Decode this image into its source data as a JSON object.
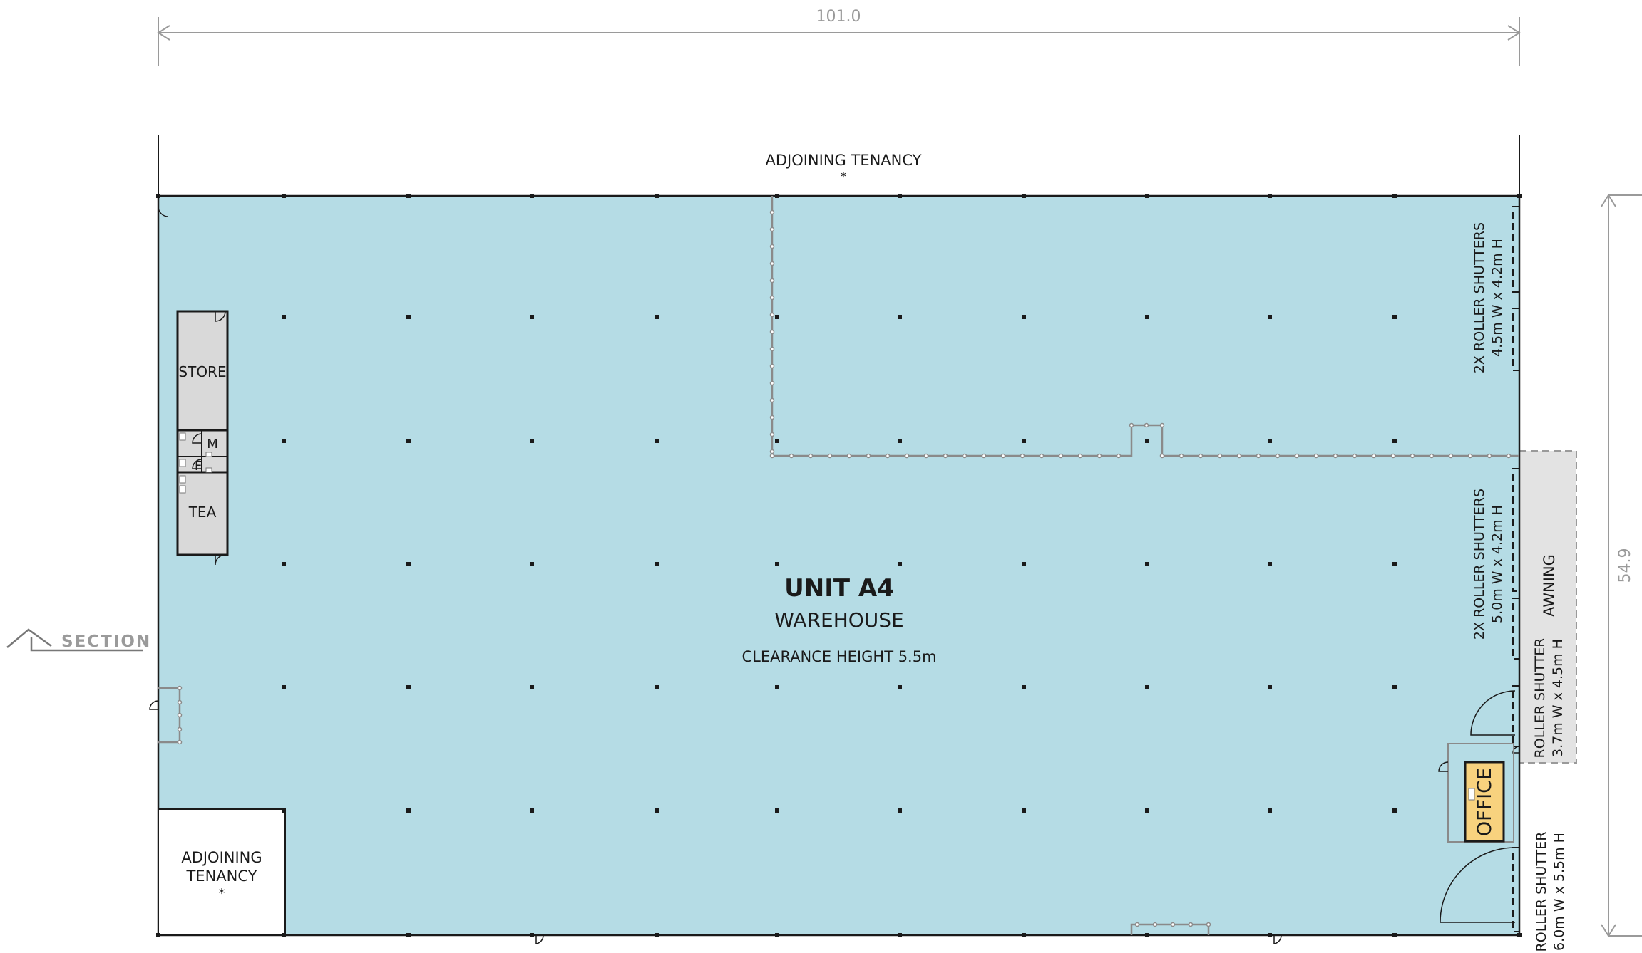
{
  "dimensions": {
    "width": "101.0",
    "depth": "54.9"
  },
  "unit": {
    "name": "UNIT A4",
    "type": "WAREHOUSE",
    "clearance": "CLEARANCE HEIGHT 5.5m"
  },
  "adjoining_top": {
    "label": "ADJOINING TENANCY",
    "mark": "*"
  },
  "adjoining_bottom": {
    "line1": "ADJOINING",
    "line2": "TENANCY",
    "mark": "*"
  },
  "rooms": {
    "store": "STORE",
    "male": "M",
    "female": "F",
    "tea": "TEA",
    "office": "OFFICE"
  },
  "section_label": "SECTION",
  "awning": "AWNING",
  "shutters": [
    {
      "line1": "2X ROLLER SHUTTERS",
      "line2": "4.5m W x 4.2m H"
    },
    {
      "line1": "2X ROLLER SHUTTERS",
      "line2": "5.0m W x 4.2m H"
    },
    {
      "line1": "ROLLER SHUTTER",
      "line2": "3.7m W x 4.5m H"
    },
    {
      "line1": "ROLLER SHUTTER",
      "line2": "6.0m W x 5.5m H"
    }
  ],
  "colors": {
    "warehouse": "#b5dce5",
    "office": "#f8d27e",
    "room": "#d9d9d9",
    "awning": "#e3e3e3",
    "fence": "#8a8a8a"
  }
}
